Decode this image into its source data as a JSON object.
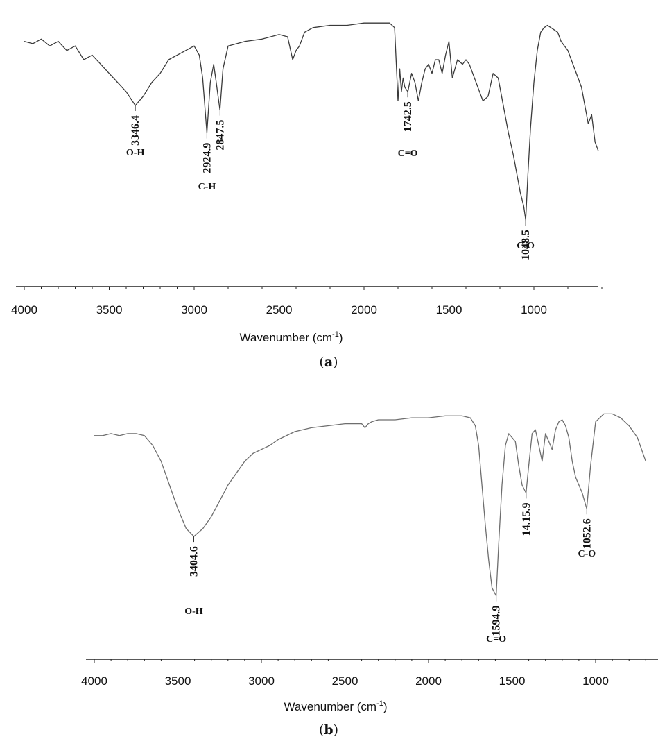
{
  "chart_data": [
    {
      "type": "line",
      "panel_label": "a",
      "xlabel": "Wavenumber (cm",
      "xlabel_sup": "-1",
      "xlim": [
        4000,
        600
      ],
      "ylim": [
        0,
        100
      ],
      "x_ticks": [
        4000,
        3500,
        3000,
        2500,
        2000,
        1500,
        1000
      ],
      "line_color": "#3a3a3a",
      "series": [
        {
          "x": [
            4000,
            3950,
            3900,
            3850,
            3800,
            3750,
            3700,
            3650,
            3600,
            3550,
            3500,
            3450,
            3400,
            3346,
            3300,
            3250,
            3200,
            3150,
            3100,
            3050,
            3000,
            2970,
            2950,
            2925,
            2905,
            2885,
            2870,
            2848,
            2830,
            2800,
            2700,
            2600,
            2500,
            2450,
            2420,
            2400,
            2380,
            2350,
            2300,
            2200,
            2100,
            2000,
            1900,
            1850,
            1820,
            1800,
            1790,
            1780,
            1770,
            1760,
            1742,
            1720,
            1700,
            1680,
            1660,
            1640,
            1620,
            1600,
            1580,
            1560,
            1540,
            1520,
            1500,
            1480,
            1450,
            1420,
            1400,
            1380,
            1360,
            1340,
            1320,
            1300,
            1270,
            1240,
            1210,
            1180,
            1150,
            1120,
            1100,
            1080,
            1060,
            1048,
            1035,
            1020,
            1000,
            980,
            960,
            940,
            920,
            900,
            880,
            860,
            840,
            820,
            800,
            780,
            760,
            740,
            720,
            700,
            680,
            660,
            640,
            620
          ],
          "y": [
            88,
            87,
            89,
            86,
            88,
            84,
            86,
            80,
            82,
            78,
            74,
            70,
            66,
            60,
            64,
            70,
            74,
            80,
            82,
            84,
            86,
            82,
            72,
            48,
            70,
            78,
            70,
            58,
            76,
            86,
            88,
            89,
            91,
            90,
            80,
            84,
            86,
            92,
            94,
            95,
            95,
            96,
            96,
            96,
            94,
            62,
            76,
            66,
            72,
            68,
            66,
            74,
            70,
            62,
            70,
            76,
            78,
            74,
            80,
            80,
            74,
            82,
            88,
            72,
            80,
            78,
            80,
            78,
            74,
            70,
            66,
            62,
            64,
            74,
            72,
            60,
            48,
            38,
            30,
            22,
            16,
            10,
            30,
            50,
            70,
            84,
            92,
            94,
            95,
            94,
            93,
            92,
            88,
            86,
            84,
            80,
            76,
            72,
            68,
            60,
            52,
            56,
            44,
            40
          ]
        }
      ],
      "annotations": [
        {
          "value": "3346.4",
          "group": "O-H",
          "x": 3346.4,
          "y": 60
        },
        {
          "value": "2924.9",
          "group": "C-H",
          "x": 2924.9,
          "y": 48
        },
        {
          "value": "2847.5",
          "group": "",
          "x": 2847.5,
          "y": 58
        },
        {
          "value": "1742.5",
          "group": "C=O",
          "x": 1742.5,
          "y": 66
        },
        {
          "value": "1048.5",
          "group": "C-O",
          "x": 1048.5,
          "y": 10
        }
      ]
    },
    {
      "type": "line",
      "panel_label": "b",
      "xlabel": "Wavenumber (cm",
      "xlabel_sup": "-1",
      "xlim": [
        4000,
        700
      ],
      "ylim": [
        0,
        100
      ],
      "x_ticks": [
        4000,
        3500,
        3000,
        2500,
        2000,
        1500,
        1000
      ],
      "line_color": "#6e6e6e",
      "series": [
        {
          "x": [
            4000,
            3950,
            3900,
            3850,
            3800,
            3750,
            3700,
            3650,
            3600,
            3550,
            3500,
            3450,
            3404,
            3350,
            3300,
            3250,
            3200,
            3150,
            3100,
            3050,
            3000,
            2950,
            2900,
            2800,
            2700,
            2600,
            2500,
            2400,
            2380,
            2360,
            2340,
            2300,
            2200,
            2100,
            2000,
            1900,
            1800,
            1750,
            1720,
            1700,
            1680,
            1660,
            1640,
            1620,
            1595,
            1580,
            1560,
            1540,
            1520,
            1500,
            1480,
            1460,
            1440,
            1416,
            1400,
            1380,
            1360,
            1340,
            1320,
            1300,
            1280,
            1260,
            1240,
            1220,
            1200,
            1180,
            1160,
            1140,
            1120,
            1100,
            1080,
            1053,
            1030,
            1000,
            950,
            900,
            850,
            800,
            750,
            700
          ],
          "y": [
            85,
            85,
            86,
            85,
            86,
            86,
            85,
            80,
            72,
            60,
            48,
            38,
            34,
            38,
            44,
            52,
            60,
            66,
            72,
            76,
            78,
            80,
            83,
            87,
            89,
            90,
            91,
            91,
            89,
            91,
            92,
            93,
            93,
            94,
            94,
            95,
            95,
            94,
            90,
            80,
            60,
            40,
            22,
            8,
            4,
            30,
            60,
            80,
            86,
            84,
            82,
            70,
            60,
            56,
            70,
            86,
            88,
            80,
            72,
            86,
            82,
            78,
            88,
            92,
            93,
            90,
            84,
            72,
            64,
            60,
            56,
            48,
            70,
            92,
            96,
            96,
            94,
            90,
            84,
            72
          ]
        }
      ],
      "annotations": [
        {
          "value": "3404.6",
          "group": "O-H",
          "x": 3404.6,
          "y": 34
        },
        {
          "value": "1594.9",
          "group": "C=O",
          "x": 1594.9,
          "y": 4
        },
        {
          "value": "14.15.9",
          "group": "",
          "x": 1415.9,
          "y": 56
        },
        {
          "value": "1052.6",
          "group": "C-O",
          "x": 1052.6,
          "y": 48
        }
      ]
    }
  ]
}
